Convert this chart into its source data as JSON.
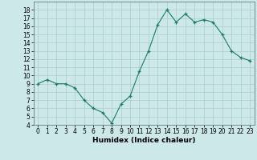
{
  "xlabel": "Humidex (Indice chaleur)",
  "x": [
    0,
    1,
    2,
    3,
    4,
    5,
    6,
    7,
    8,
    9,
    10,
    11,
    12,
    13,
    14,
    15,
    16,
    17,
    18,
    19,
    20,
    21,
    22,
    23
  ],
  "y": [
    9.0,
    9.5,
    9.0,
    9.0,
    8.5,
    7.0,
    6.0,
    5.5,
    4.2,
    6.5,
    7.5,
    10.5,
    13.0,
    16.2,
    18.0,
    16.5,
    17.5,
    16.5,
    16.8,
    16.5,
    15.0,
    13.0,
    12.2,
    11.8
  ],
  "line_color": "#1a7a6e",
  "marker": "+",
  "bg_color": "#cce8e8",
  "grid_color": "#b0d0d0",
  "ylim": [
    4,
    19
  ],
  "xlim": [
    -0.5,
    23.5
  ],
  "yticks": [
    4,
    5,
    6,
    7,
    8,
    9,
    10,
    11,
    12,
    13,
    14,
    15,
    16,
    17,
    18
  ],
  "xticks": [
    0,
    1,
    2,
    3,
    4,
    5,
    6,
    7,
    8,
    9,
    10,
    11,
    12,
    13,
    14,
    15,
    16,
    17,
    18,
    19,
    20,
    21,
    22,
    23
  ],
  "label_fontsize": 6.5,
  "tick_fontsize": 5.5
}
